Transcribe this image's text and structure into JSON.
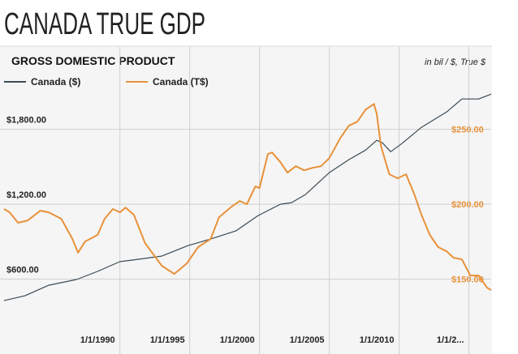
{
  "chart_data": {
    "type": "line",
    "title": "CANADA TRUE GDP",
    "subtitle": "GROSS DOMESTIC PRODUCT",
    "units_note": "in bil / $, True $",
    "xlim": [
      1981.7,
      2016.6
    ],
    "xticks": [
      {
        "value": 1990,
        "label": "1/1/1990"
      },
      {
        "value": 1995,
        "label": "1/1/1995"
      },
      {
        "value": 2000,
        "label": "1/1/2000"
      },
      {
        "value": 2005,
        "label": "1/1/2005"
      },
      {
        "value": 2010,
        "label": "1/1/2010"
      },
      {
        "value": 2015,
        "label": "1/1/2..."
      }
    ],
    "ylim": [
      0,
      2460
    ],
    "yticks": [
      {
        "value": 600,
        "label": "$600.00"
      },
      {
        "value": 1200,
        "label": "$1,200.00"
      },
      {
        "value": 1800,
        "label": "$1,800.00"
      }
    ],
    "y2lim": [
      100,
      305
    ],
    "y2ticks": [
      {
        "value": 150,
        "label": "$150.00"
      },
      {
        "value": 200,
        "label": "$200.00"
      },
      {
        "value": 250,
        "label": "$250.00"
      }
    ],
    "grid": true,
    "series": [
      {
        "name": "Canada ($)",
        "color": "#3b4b55",
        "x": [
          1981.7,
          1983.2,
          1984.9,
          1986.9,
          1988.4,
          1990.0,
          1991.3,
          1993.0,
          1994.9,
          1996.5,
          1998.3,
          1999.9,
          2001.5,
          2002.3,
          2003.3,
          2005.0,
          2006.4,
          2007.6,
          2008.4,
          2008.8,
          2009.4,
          2010.2,
          2011.6,
          2013.4,
          2014.5,
          2015.7,
          2016.6
        ],
        "values": [
          428,
          467,
          551,
          597,
          662,
          740,
          759,
          785,
          869,
          921,
          986,
          1109,
          1200,
          1213,
          1278,
          1453,
          1557,
          1634,
          1712,
          1693,
          1621,
          1686,
          1816,
          1939,
          2043,
          2043,
          2082
        ]
      },
      {
        "name": "Canada (T$)",
        "color": "#e8913a",
        "axis": "y2",
        "x": [
          1981.7,
          1982.1,
          1982.7,
          1983.4,
          1984.3,
          1984.9,
          1985.8,
          1986.6,
          1987.0,
          1987.5,
          1988.4,
          1988.9,
          1989.5,
          1990.0,
          1990.4,
          1991.0,
          1991.8,
          1993.0,
          1993.9,
          1994.8,
          1995.6,
          1996.5,
          1997.1,
          1998.0,
          1998.6,
          1999.1,
          1999.7,
          2000.0,
          2000.6,
          2000.9,
          2001.5,
          2002.0,
          2002.6,
          2003.2,
          2003.8,
          2004.4,
          2005.0,
          2005.8,
          2006.4,
          2007.0,
          2007.6,
          2008.2,
          2008.4,
          2008.7,
          2009.3,
          2009.9,
          2010.5,
          2011.1,
          2011.6,
          2012.2,
          2012.8,
          2013.4,
          2013.9,
          2014.5,
          2015.1,
          2015.7,
          2016.3,
          2016.6
        ],
        "values": [
          196.8,
          194.6,
          187.6,
          189.2,
          195.7,
          194.6,
          190.3,
          176.8,
          167.6,
          175.1,
          179.5,
          190.3,
          196.8,
          194.6,
          197.8,
          193.0,
          174.1,
          158.9,
          153.5,
          160.5,
          171.4,
          176.8,
          191.3,
          198.4,
          202.2,
          200.0,
          211.9,
          210.8,
          233.5,
          234.6,
          228.1,
          221.1,
          225.4,
          222.7,
          224.3,
          225.4,
          230.8,
          244.3,
          252.4,
          255.1,
          263.2,
          267.0,
          260.5,
          238.9,
          220.0,
          217.3,
          220.0,
          206.5,
          193.0,
          179.5,
          171.4,
          168.6,
          164.3,
          163.2,
          152.4,
          152.4,
          144.3,
          142.7
        ]
      }
    ]
  }
}
